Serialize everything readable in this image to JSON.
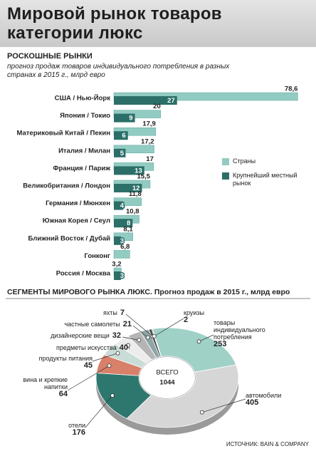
{
  "title": [
    "Мировой рынок товаров",
    "категории люкс"
  ],
  "chart_data": [
    {
      "type": "hbar",
      "title": "РОСКОШНЫЕ РЫНКИ",
      "subtitle": "прогноз продаж товаров индивидуального потребления в разных странах в 2015 г., млрд евро",
      "categories": [
        "США / Нью-Йорк",
        "Япония / Токио",
        "Материковый Китай / Пекин",
        "Италия / Милан",
        "Франция / Париж",
        "Великобритания / Лондон",
        "Германия / Мюнхен",
        "Южная Корея / Сеул",
        "Ближний Восток / Дубай",
        "Гонконг",
        "Россия / Москва"
      ],
      "series": [
        {
          "name": "Страны",
          "color": "#92cbc2",
          "values": [
            78.6,
            20,
            17.9,
            17.2,
            17,
            15.5,
            11.8,
            10.8,
            8.1,
            6.8,
            3.2
          ],
          "value_labels": [
            "78,6",
            "20",
            "17,9",
            "17,2",
            "17",
            "15,5",
            "11,8",
            "10,8",
            "8,1",
            "6,8",
            "3,2"
          ]
        },
        {
          "name": "Крупнейший местный рынок",
          "color": "#2b6f68",
          "values": [
            27,
            9,
            6,
            5,
            13,
            12,
            4,
            8,
            3,
            null,
            3
          ]
        }
      ],
      "xlim": [
        0,
        80
      ]
    },
    {
      "type": "pie",
      "title": "СЕГМЕНТЫ МИРОВОГО РЫНКА ЛЮКС. Прогноз продаж в 2015 г., млрд евро",
      "center_label": "ВСЕГО",
      "total": 1044,
      "categories": [
        "товары индивидуального потребления",
        "автомобили",
        "отели",
        "вина и крепкие напитки",
        "продукты питания",
        "предметы искусства",
        "дизайнерские вещи",
        "частные самолеты",
        "яхты",
        "круизы"
      ],
      "values": [
        253,
        405,
        176,
        64,
        45,
        40,
        32,
        21,
        7,
        2
      ],
      "colors": [
        "#9fd1c7",
        "#d6d6d6",
        "#2e776e",
        "#d8806a",
        "#c9dcd7",
        "#ececec",
        "#b5b5b5",
        "#8fa6a8",
        "#4a4a4a",
        "#c0504d"
      ]
    }
  ],
  "source": "ИСТОЧНИК: BAIN & COMPANY"
}
